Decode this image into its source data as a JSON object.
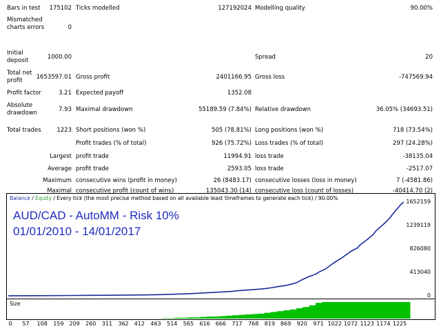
{
  "report": {
    "bars_in_test": {
      "label": "Bars in test",
      "value": "175102"
    },
    "ticks_modelled": {
      "label": "Ticks modelled",
      "value": "127192024"
    },
    "modelling_quality": {
      "label": "Modelling quality",
      "value": "90.00%"
    },
    "mismatched_errors": {
      "label": "Mismatched charts errors",
      "value": "0"
    },
    "initial_deposit": {
      "label": "Initial deposit",
      "value": "1000.00"
    },
    "spread": {
      "label": "Spread",
      "value": "20"
    },
    "total_net_profit": {
      "label": "Total net profit",
      "value": "1653597.01"
    },
    "gross_profit": {
      "label": "Gross profit",
      "value": "2401166.95"
    },
    "gross_loss": {
      "label": "Gross loss",
      "value": "-747569.94"
    },
    "profit_factor": {
      "label": "Profit factor",
      "value": "3.21"
    },
    "expected_payoff": {
      "label": "Expected payoff",
      "value": "1352.08"
    },
    "absolute_drawdown": {
      "label": "Absolute drawdown",
      "value": "7.93"
    },
    "maximal_drawdown": {
      "label": "Maximal drawdown",
      "value": "55189.59 (7.84%)"
    },
    "relative_drawdown": {
      "label": "Relative drawdown",
      "value": "36.05% (34693.51)"
    },
    "total_trades": {
      "label": "Total trades",
      "value": "1223"
    },
    "short_positions": {
      "label": "Short positions (won %)",
      "value": "505 (78.81%)"
    },
    "long_positions": {
      "label": "Long positions (won %)",
      "value": "718 (73.54%)"
    },
    "profit_trades": {
      "label": "Profit trades (% of total)",
      "value": "926 (75.72%)"
    },
    "loss_trades": {
      "label": "Loss trades (% of total)",
      "value": "297 (24.28%)"
    },
    "largest_label": "Largest",
    "largest_profit": {
      "label": "profit trade",
      "value": "11994.91"
    },
    "largest_loss": {
      "label": "loss trade",
      "value": "-38135.04"
    },
    "average_label": "Average",
    "average_profit": {
      "label": "profit trade",
      "value": "2593.05"
    },
    "average_loss": {
      "label": "loss trade",
      "value": "-2517.07"
    },
    "maximum_label": "Maximum",
    "max_consec_wins": {
      "label": "consecutive wins (profit in money)",
      "value": "26 (8483.17)"
    },
    "max_consec_losses": {
      "label": "consecutive losses (loss in money)",
      "value": "7 (-4581.86)"
    },
    "maximal_label": "Maximal",
    "maximal_consec_profit": {
      "label": "consecutive profit (count of wins)",
      "value": "135043.30 (14)"
    },
    "maximal_consec_loss": {
      "label": "consecutive loss (count of losses)",
      "value": "-40414.70 (2)"
    },
    "avg_consec_label": "Average",
    "avg_consec_wins": {
      "label": "consecutive wins",
      "value": "4"
    },
    "avg_consec_losses": {
      "label": "consecutive losses",
      "value": "1"
    }
  },
  "chart": {
    "legend_balance": "Balance",
    "legend_sep1": " / ",
    "legend_equity": "Equity",
    "legend_rest": " / Every tick (the most precise method based on all available least timeframes to generate each tick) / 90.00%",
    "title_line1": "AUD/CAD - AutoMM - Risk 10%",
    "title_line2": "01/01/2010 - 14/01/2017",
    "size_label": "Size",
    "colors": {
      "balance": "#1a2a9a",
      "equity": "#2e9a2e",
      "size_bars": "#00c000"
    }
  },
  "chart_data": {
    "type": "line",
    "y_ticks": [
      "1652159",
      "1239119",
      "826080",
      "413040",
      "0"
    ],
    "y_tick_values": [
      1652159,
      1239119,
      826080,
      413040,
      0
    ],
    "x_ticks": [
      "0",
      "57",
      "108",
      "159",
      "209",
      "260",
      "311",
      "362",
      "412",
      "463",
      "514",
      "565",
      "616",
      "666",
      "717",
      "768",
      "819",
      "869",
      "920",
      "971",
      "1022",
      "1072",
      "1123",
      "1174",
      "1225"
    ],
    "x_tick_values": [
      0,
      57,
      108,
      159,
      209,
      260,
      311,
      362,
      412,
      463,
      514,
      565,
      616,
      666,
      717,
      768,
      819,
      869,
      920,
      971,
      1022,
      1072,
      1123,
      1174,
      1225
    ],
    "xlim": [
      0,
      1240
    ],
    "ylim": [
      0,
      1700000
    ],
    "series": [
      {
        "x": [
          0,
          100,
          200,
          300,
          400,
          463,
          514,
          565,
          616,
          666,
          700,
          717,
          768,
          800,
          819,
          840,
          869,
          900,
          920,
          940,
          960,
          971,
          990,
          1000,
          1022,
          1040,
          1050,
          1072,
          1090,
          1100,
          1123,
          1140,
          1150,
          1174,
          1190,
          1200,
          1210,
          1225,
          1235
        ],
        "values": [
          1000,
          3000,
          6000,
          10000,
          14000,
          20000,
          28000,
          38000,
          52000,
          68000,
          80000,
          90000,
          110000,
          125000,
          140000,
          160000,
          185000,
          230000,
          290000,
          340000,
          380000,
          420000,
          470000,
          510000,
          600000,
          660000,
          700000,
          790000,
          840000,
          900000,
          1000000,
          1080000,
          1150000,
          1270000,
          1360000,
          1430000,
          1500000,
          1600000,
          1652159
        ]
      }
    ],
    "size_bars": {
      "x": [
        480,
        500,
        520,
        540,
        560,
        580,
        600,
        620,
        640,
        660,
        680,
        700,
        720,
        740,
        760,
        780,
        800,
        820,
        840,
        860,
        880,
        900,
        920,
        940,
        960,
        980,
        1000,
        1020,
        1040,
        1060,
        1080,
        1100,
        1120,
        1140,
        1160,
        1180,
        1200,
        1220,
        1235
      ],
      "values": [
        1,
        1,
        2,
        2,
        3,
        3,
        4,
        5,
        5,
        6,
        7,
        8,
        9,
        10,
        11,
        12,
        14,
        16,
        18,
        20,
        22,
        25,
        28,
        32,
        38,
        40,
        40,
        40,
        40,
        40,
        40,
        40,
        40,
        40,
        40,
        40,
        40,
        40,
        40
      ]
    }
  }
}
